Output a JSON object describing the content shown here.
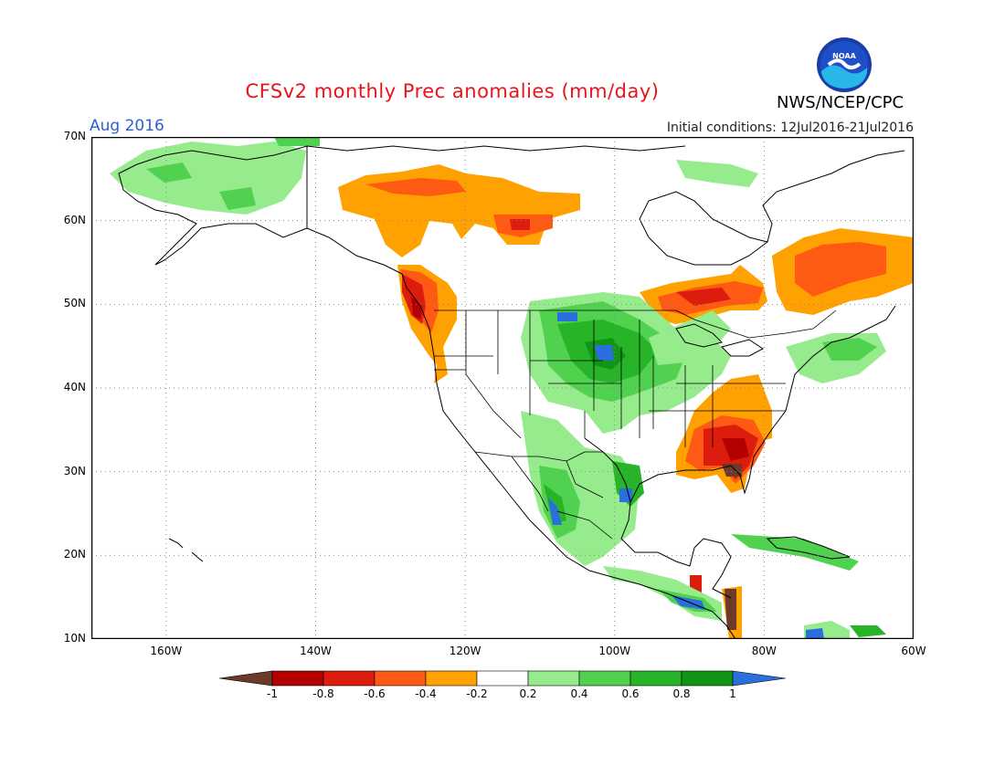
{
  "header": {
    "title": "CFSv2 monthly Prec anomalies (mm/day)",
    "agency": "NWS/NCEP/CPC",
    "logo_text": "NOAA",
    "target_month": "Aug 2016",
    "initial_conditions": "Initial conditions: 12Jul2016-21Jul2016"
  },
  "map": {
    "lon_range": [
      -170,
      -60
    ],
    "lat_range": [
      10,
      70
    ],
    "lat_labels": [
      "70N",
      "60N",
      "50N",
      "40N",
      "30N",
      "20N",
      "10N"
    ],
    "lon_labels": [
      "160W",
      "140W",
      "120W",
      "100W",
      "80W",
      "60W"
    ],
    "grid": "dotted",
    "anomaly_regions": [
      {
        "region": "Northern Canada (Northwest Territories)",
        "level": "-0.4 to -0.8"
      },
      {
        "region": "Pacific Northwest coast / British Columbia",
        "level": "-0.6 to -1"
      },
      {
        "region": "Southeastern United States",
        "level": "-0.6 to -1"
      },
      {
        "region": "Ontario / Great Lakes",
        "level": "-0.4 to -0.8"
      },
      {
        "region": "Quebec / Labrador",
        "level": "-0.4 to -0.6"
      },
      {
        "region": "Central Plains and Upper Midwest",
        "level": "0.4 to 1"
      },
      {
        "region": "Western Mexico / Gulf coast",
        "level": "0.4 to 1"
      },
      {
        "region": "Alaska",
        "level": "0.2 to 0.6"
      }
    ]
  },
  "colorbar": {
    "labels": [
      "-1",
      "-0.8",
      "-0.6",
      "-0.4",
      "-0.2",
      "0.2",
      "0.4",
      "0.6",
      "0.8",
      "1"
    ],
    "colors": [
      "#6b3a2a",
      "#b40000",
      "#dc1c0c",
      "#ff5a14",
      "#ffa100",
      "#ffffff",
      "#96eb8c",
      "#50d250",
      "#28b428",
      "#109614",
      "#2a6fdc"
    ]
  }
}
